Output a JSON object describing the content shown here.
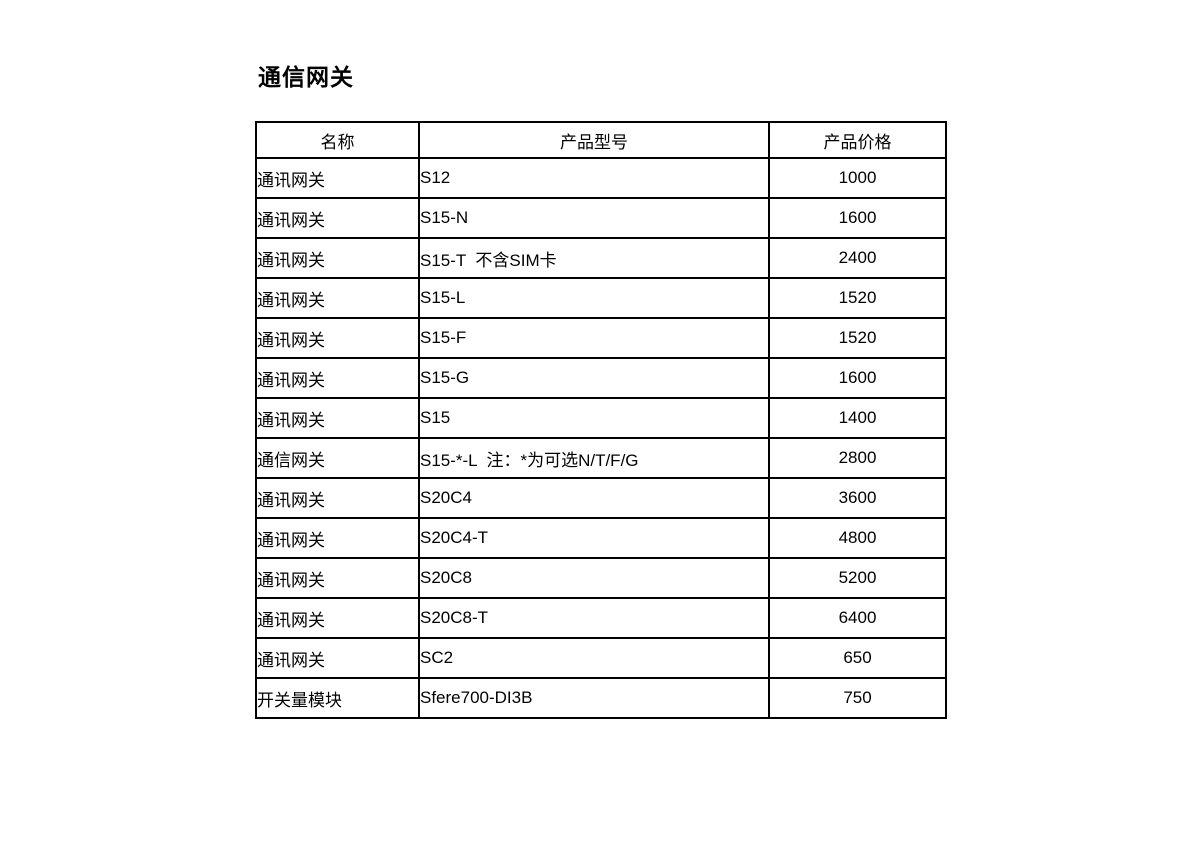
{
  "page": {
    "title": "通信网关"
  },
  "table": {
    "headers": [
      "名称",
      "产品型号",
      "产品价格"
    ],
    "rows": [
      {
        "name": "通讯网关",
        "model": "S12",
        "price": "1000"
      },
      {
        "name": "通讯网关",
        "model": "S15-N",
        "price": "1600"
      },
      {
        "name": "通讯网关",
        "model": "S15-T  不含SIM卡",
        "price": "2400"
      },
      {
        "name": "通讯网关",
        "model": "S15-L",
        "price": "1520"
      },
      {
        "name": "通讯网关",
        "model": "S15-F",
        "price": "1520"
      },
      {
        "name": "通讯网关",
        "model": "S15-G",
        "price": "1600"
      },
      {
        "name": "通讯网关",
        "model": "S15",
        "price": "1400"
      },
      {
        "name": "通信网关",
        "model": "S15-*-L  注：*为可选N/T/F/G",
        "price": "2800"
      },
      {
        "name": "通讯网关",
        "model": "S20C4",
        "price": "3600"
      },
      {
        "name": "通讯网关",
        "model": "S20C4-T",
        "price": "4800"
      },
      {
        "name": "通讯网关",
        "model": "S20C8",
        "price": "5200"
      },
      {
        "name": "通讯网关",
        "model": "S20C8-T",
        "price": "6400"
      },
      {
        "name": "通讯网关",
        "model": "SC2",
        "price": "650"
      },
      {
        "name": "开关量模块",
        "model": "Sfere700-DI3B",
        "price": "750"
      }
    ]
  },
  "colors": {
    "text": "#000000",
    "border": "#000000",
    "background": "#ffffff"
  }
}
